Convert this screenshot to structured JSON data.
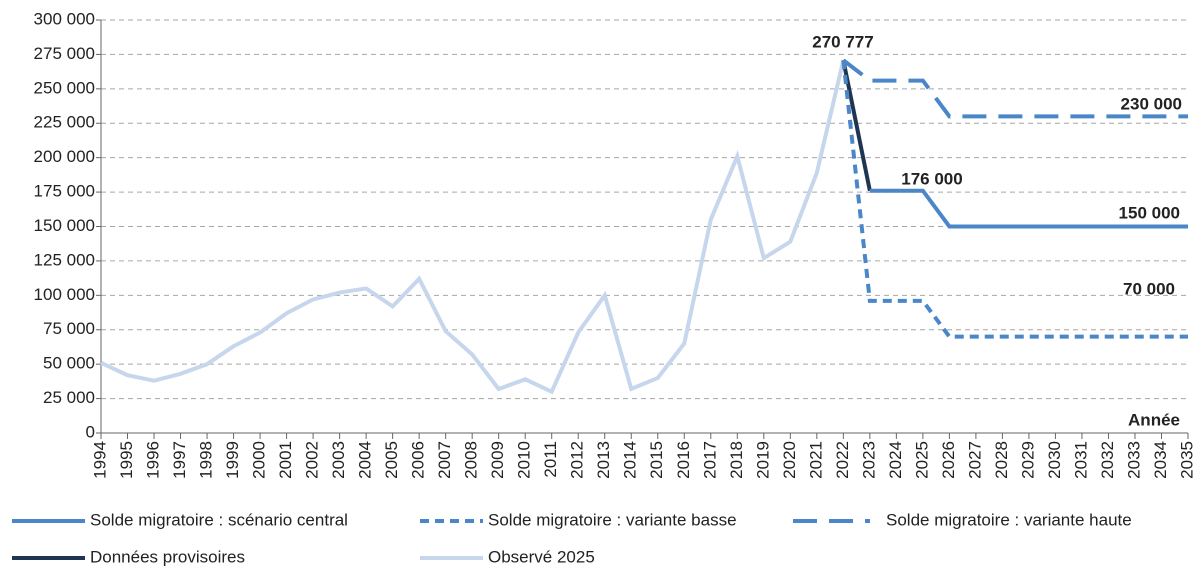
{
  "chart_data": {
    "type": "line",
    "xlim": [
      1994,
      2035
    ],
    "xticks": [
      1994,
      1995,
      1996,
      1997,
      1998,
      1999,
      2000,
      2001,
      2002,
      2003,
      2004,
      2005,
      2006,
      2007,
      2008,
      2009,
      2010,
      2011,
      2012,
      2013,
      2014,
      2015,
      2016,
      2017,
      2018,
      2019,
      2020,
      2021,
      2022,
      2023,
      2024,
      2025,
      2026,
      2027,
      2028,
      2029,
      2030,
      2031,
      2032,
      2033,
      2034,
      2035
    ],
    "ylim": [
      0,
      300000
    ],
    "yticks": [
      0,
      {
        "value": 25000,
        "label": "25 000"
      },
      {
        "value": 50000,
        "label": "50 000"
      },
      {
        "value": 75000,
        "label": "75 000"
      },
      {
        "value": 100000,
        "label": "100 000"
      },
      {
        "value": 125000,
        "label": "125 000"
      },
      {
        "value": 150000,
        "label": "150 000"
      },
      {
        "value": 175000,
        "label": "175 000"
      },
      {
        "value": 200000,
        "label": "200 000"
      },
      {
        "value": 225000,
        "label": "225 000"
      },
      {
        "value": 250000,
        "label": "250 000"
      },
      {
        "value": 275000,
        "label": "275 000"
      },
      {
        "value": 300000,
        "label": "300 000"
      }
    ],
    "grid": true,
    "x_label": "Année",
    "series": [
      {
        "name": "Solde migratoire : scénario central",
        "color": "#4a86c8",
        "dash": "solid",
        "x": [
          2023,
          2024,
          2025,
          2026,
          2027,
          2028,
          2029,
          2030,
          2031,
          2032,
          2033,
          2034,
          2035
        ],
        "values": [
          176000,
          176000,
          176000,
          150000,
          150000,
          150000,
          150000,
          150000,
          150000,
          150000,
          150000,
          150000,
          150000
        ]
      },
      {
        "name": "Solde migratoire : variante basse",
        "color": "#4a86c8",
        "dash": "dashed",
        "x": [
          2022,
          2023,
          2024,
          2025,
          2026,
          2027,
          2028,
          2029,
          2030,
          2031,
          2032,
          2033,
          2034,
          2035
        ],
        "values": [
          270777,
          96000,
          96000,
          96000,
          70000,
          70000,
          70000,
          70000,
          70000,
          70000,
          70000,
          70000,
          70000,
          70000
        ]
      },
      {
        "name": "Solde migratoire : variante haute",
        "color": "#4a86c8",
        "dash": "long-dash",
        "x": [
          2022,
          2023,
          2024,
          2025,
          2026,
          2027,
          2028,
          2029,
          2030,
          2031,
          2032,
          2033,
          2034,
          2035
        ],
        "values": [
          270777,
          256000,
          256000,
          256000,
          230000,
          230000,
          230000,
          230000,
          230000,
          230000,
          230000,
          230000,
          230000,
          230000
        ]
      },
      {
        "name": "Données provisoires",
        "color": "#1f3552",
        "dash": "solid",
        "x": [
          2022,
          2023
        ],
        "values": [
          270777,
          176000
        ]
      },
      {
        "name": "Observé 2025",
        "color": "#c6d6ec",
        "dash": "solid",
        "x": [
          1994,
          1995,
          1996,
          1997,
          1998,
          1999,
          2000,
          2001,
          2002,
          2003,
          2004,
          2005,
          2006,
          2007,
          2008,
          2009,
          2010,
          2011,
          2012,
          2013,
          2014,
          2015,
          2016,
          2017,
          2018,
          2019,
          2020,
          2021,
          2022
        ],
        "values": [
          51000,
          42000,
          38000,
          43000,
          50000,
          63000,
          73000,
          87000,
          97000,
          102000,
          105000,
          92000,
          112000,
          74000,
          57000,
          32000,
          39000,
          30000,
          73000,
          100000,
          32000,
          40000,
          65000,
          155000,
          201000,
          127000,
          139000,
          189000,
          270777
        ]
      }
    ],
    "annotations": [
      {
        "text": "270 777",
        "color": "#8db3e2"
      },
      {
        "text": "176 000",
        "color": "#1f3552"
      },
      {
        "text": "230 000",
        "color": "#4a86c8"
      },
      {
        "text": "150 000",
        "color": "#4a86c8"
      },
      {
        "text": "70 000",
        "color": "#4a86c8"
      }
    ]
  }
}
